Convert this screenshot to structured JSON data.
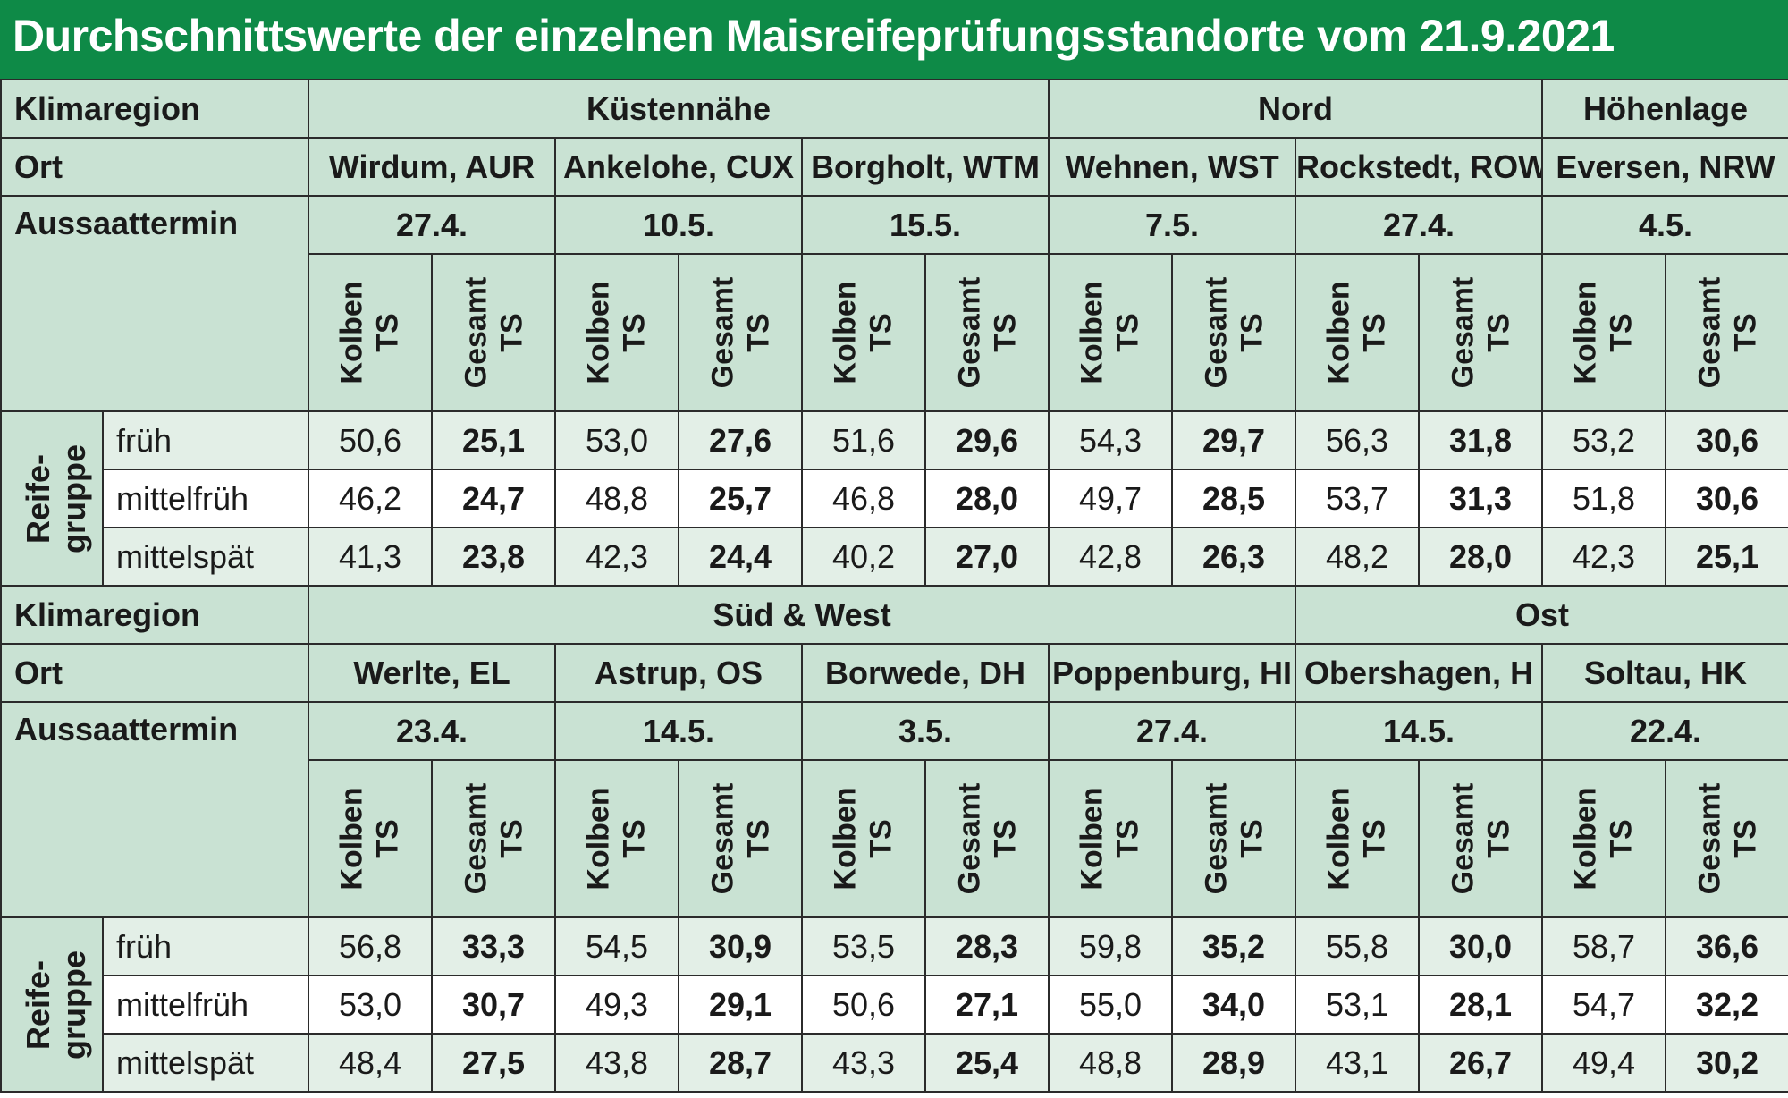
{
  "title": "Durchschnittswerte der einzelnen Maisreifeprüfungsstandorte vom 21.9.2021",
  "labels": {
    "klimaregion": "Klimaregion",
    "ort": "Ort",
    "aussaattermin": "Aussaattermin",
    "reife_line1": "Reife-",
    "reife_line2": "gruppe",
    "kolben_line1": "Kolben",
    "kolben_line2": "TS",
    "gesamt_line1": "Gesamt",
    "gesamt_line2": "TS"
  },
  "groups": [
    "früh",
    "mittelfrüh",
    "mittelspät"
  ],
  "blocks": [
    {
      "regions": [
        {
          "name": "Küstennähe",
          "span": 3
        },
        {
          "name": "Nord",
          "span": 2
        },
        {
          "name": "Höhenlage",
          "span": 1
        }
      ],
      "sites": [
        {
          "ort": "Wirdum, AUR",
          "aussaat": "27.4.",
          "kolben": [
            "50,6",
            "46,2",
            "41,3"
          ],
          "gesamt": [
            "25,1",
            "24,7",
            "23,8"
          ]
        },
        {
          "ort": "Ankelohe, CUX",
          "aussaat": "10.5.",
          "kolben": [
            "53,0",
            "48,8",
            "42,3"
          ],
          "gesamt": [
            "27,6",
            "25,7",
            "24,4"
          ]
        },
        {
          "ort": "Borgholt, WTM",
          "aussaat": "15.5.",
          "kolben": [
            "51,6",
            "46,8",
            "40,2"
          ],
          "gesamt": [
            "29,6",
            "28,0",
            "27,0"
          ]
        },
        {
          "ort": "Wehnen, WST",
          "aussaat": "7.5.",
          "kolben": [
            "54,3",
            "49,7",
            "42,8"
          ],
          "gesamt": [
            "29,7",
            "28,5",
            "26,3"
          ]
        },
        {
          "ort": "Rockstedt, ROW",
          "aussaat": "27.4.",
          "kolben": [
            "56,3",
            "53,7",
            "48,2"
          ],
          "gesamt": [
            "31,8",
            "31,3",
            "28,0"
          ]
        },
        {
          "ort": "Eversen, NRW",
          "aussaat": "4.5.",
          "kolben": [
            "53,2",
            "51,8",
            "42,3"
          ],
          "gesamt": [
            "30,6",
            "30,6",
            "25,1"
          ]
        }
      ]
    },
    {
      "regions": [
        {
          "name": "Süd & West",
          "span": 4
        },
        {
          "name": "Ost",
          "span": 2
        }
      ],
      "sites": [
        {
          "ort": "Werlte, EL",
          "aussaat": "23.4.",
          "kolben": [
            "56,8",
            "53,0",
            "48,4"
          ],
          "gesamt": [
            "33,3",
            "30,7",
            "27,5"
          ]
        },
        {
          "ort": "Astrup, OS",
          "aussaat": "14.5.",
          "kolben": [
            "54,5",
            "49,3",
            "43,8"
          ],
          "gesamt": [
            "30,9",
            "29,1",
            "28,7"
          ]
        },
        {
          "ort": "Borwede, DH",
          "aussaat": "3.5.",
          "kolben": [
            "53,5",
            "50,6",
            "43,3"
          ],
          "gesamt": [
            "28,3",
            "27,1",
            "25,4"
          ]
        },
        {
          "ort": "Poppenburg, HI",
          "aussaat": "27.4.",
          "kolben": [
            "59,8",
            "55,0",
            "48,8"
          ],
          "gesamt": [
            "35,2",
            "34,0",
            "28,9"
          ]
        },
        {
          "ort": "Obershagen, H",
          "aussaat": "14.5.",
          "kolben": [
            "55,8",
            "53,1",
            "43,1"
          ],
          "gesamt": [
            "30,0",
            "28,1",
            "26,7"
          ]
        },
        {
          "ort": "Soltau, HK",
          "aussaat": "22.4.",
          "kolben": [
            "58,7",
            "54,7",
            "49,4"
          ],
          "gesamt": [
            "36,6",
            "32,2",
            "30,2"
          ]
        }
      ]
    }
  ]
}
